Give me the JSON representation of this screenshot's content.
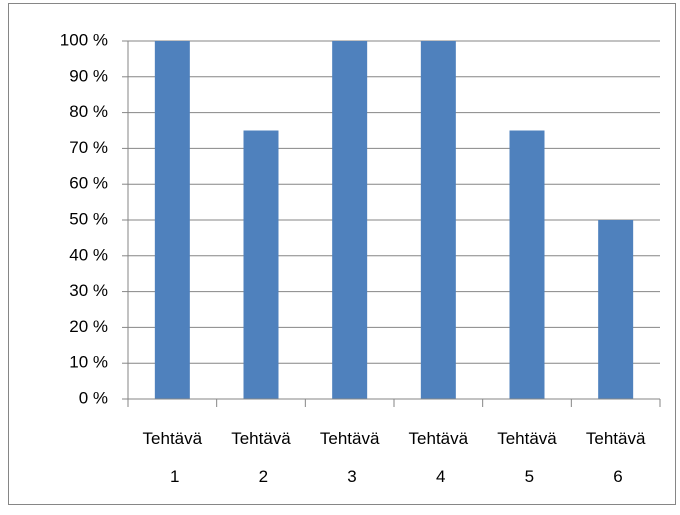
{
  "chart_data": {
    "type": "bar",
    "categories": [
      "Tehtävä 1",
      "Tehtävä 2",
      "Tehtävä 3",
      "Tehtävä 4",
      "Tehtävä 5",
      "Tehtävä 6"
    ],
    "values": [
      100,
      75,
      100,
      100,
      75,
      50
    ],
    "color": "#4f81bd",
    "ylim": [
      0,
      100
    ],
    "yticks": [
      {
        "value": 0,
        "label": "0 %"
      },
      {
        "value": 10,
        "label": "10 %"
      },
      {
        "value": 20,
        "label": "20 %"
      },
      {
        "value": 30,
        "label": "30 %"
      },
      {
        "value": 40,
        "label": "40 %"
      },
      {
        "value": 50,
        "label": "50 %"
      },
      {
        "value": 60,
        "label": "60 %"
      },
      {
        "value": 70,
        "label": "70 %"
      },
      {
        "value": 80,
        "label": "80 %"
      },
      {
        "value": 90,
        "label": "90 %"
      },
      {
        "value": 100,
        "label": "100 %"
      }
    ],
    "grid": true
  }
}
